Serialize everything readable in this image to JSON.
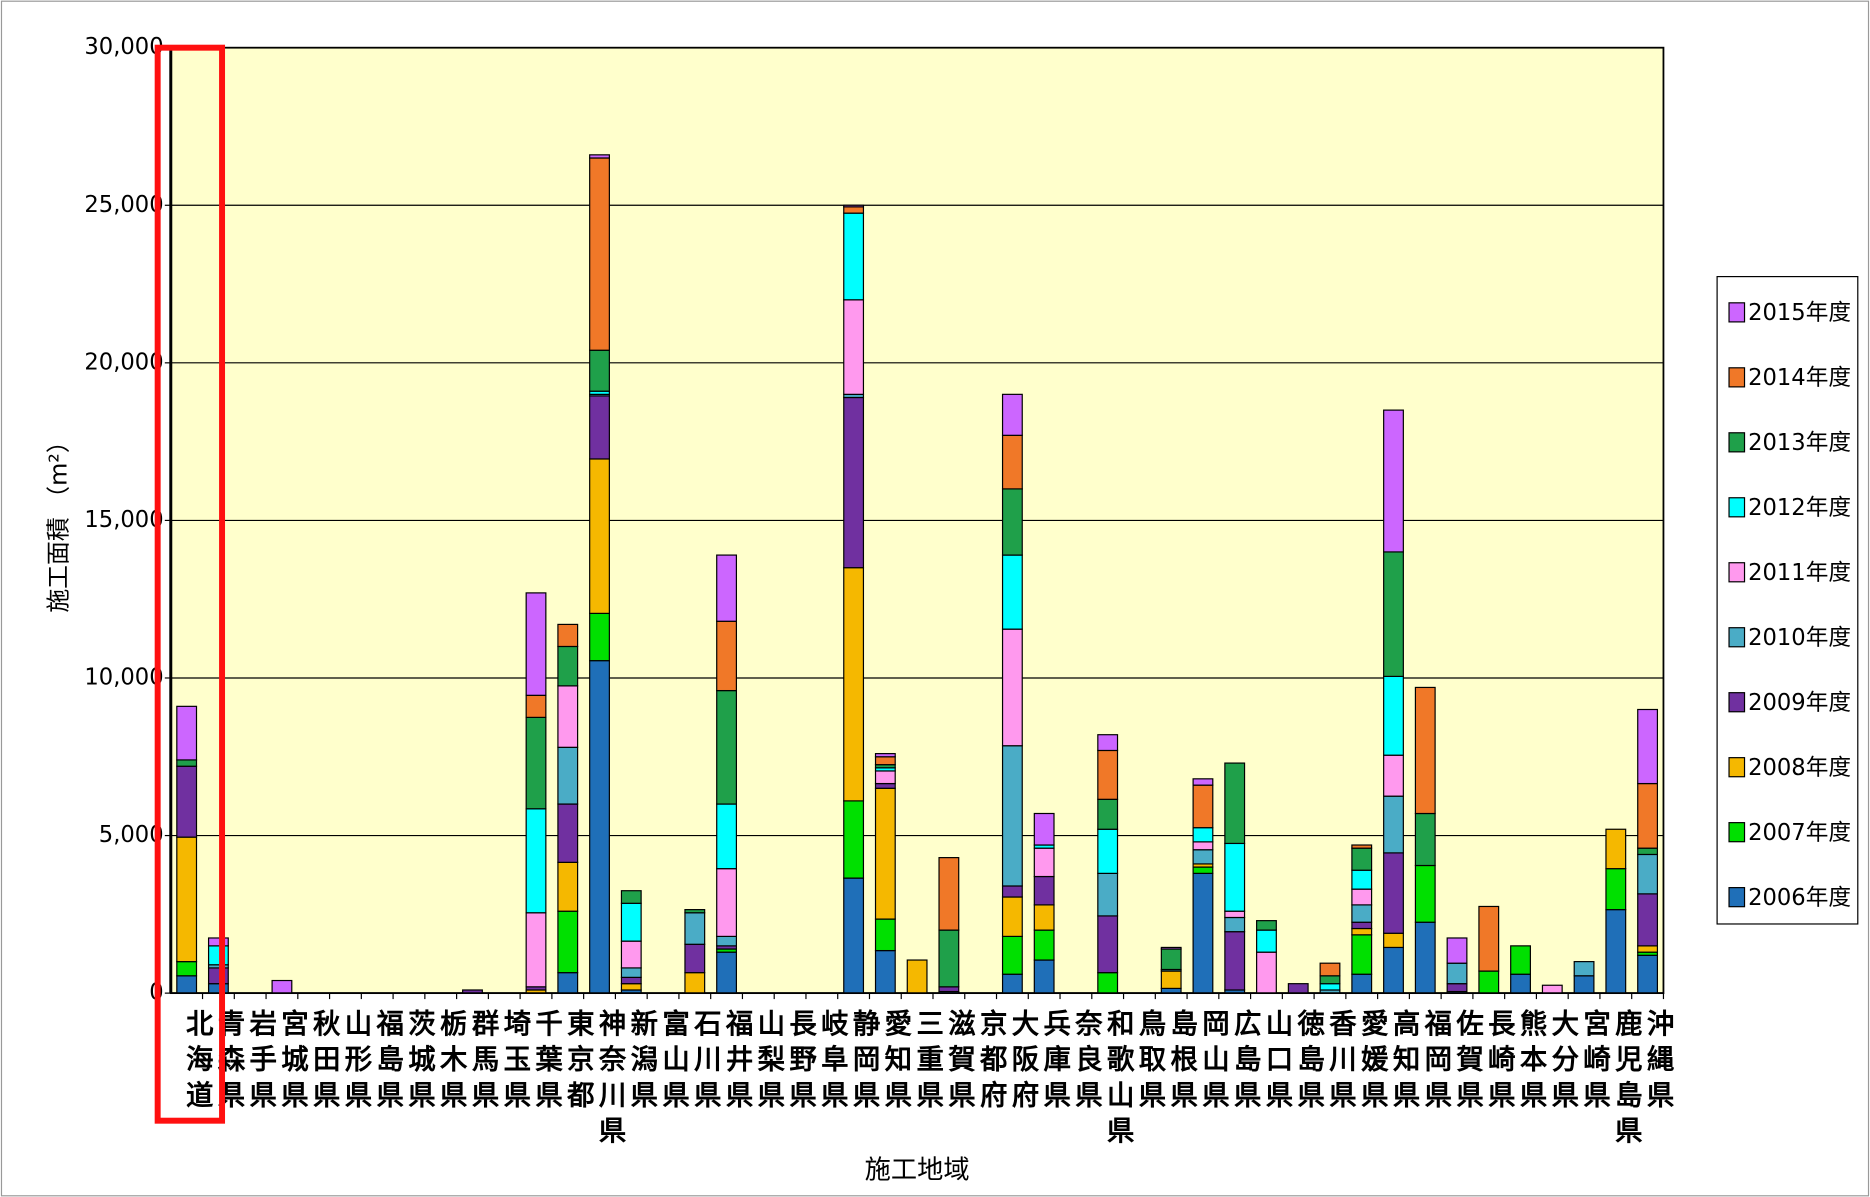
{
  "chart_data": {
    "type": "stacked_bar",
    "y_label": "施工面積 （m²）",
    "x_label": "施工地域",
    "categories": [
      "北海道",
      "青森県",
      "岩手県",
      "宮城県",
      "秋田県",
      "山形県",
      "福島県",
      "茨城県",
      "栃木県",
      "群馬県",
      "埼玉県",
      "千葉県",
      "東京都",
      "神奈川県",
      "新潟県",
      "富山県",
      "石川県",
      "福井県",
      "山梨県",
      "長野県",
      "岐阜県",
      "静岡県",
      "愛知県",
      "三重県",
      "滋賀県",
      "京都府",
      "大阪府",
      "兵庫県",
      "奈良県",
      "和歌山県",
      "鳥取県",
      "島根県",
      "岡山県",
      "広島県",
      "山口県",
      "徳島県",
      "香川県",
      "愛媛県",
      "高知県",
      "福岡県",
      "佐賀県",
      "長崎県",
      "熊本県",
      "大分県",
      "宮崎県",
      "鹿児島県",
      "沖縄県"
    ],
    "ylim": [
      0,
      30000
    ],
    "yticks": [
      {
        "value": 0,
        "label": "0"
      },
      {
        "value": 5000,
        "label": "5,000"
      },
      {
        "value": 10000,
        "label": "10,000"
      },
      {
        "value": 15000,
        "label": "15,000"
      },
      {
        "value": 20000,
        "label": "20,000"
      },
      {
        "value": 25000,
        "label": "25,000"
      },
      {
        "value": 30000,
        "label": "30,000"
      }
    ],
    "grid": true,
    "legend": "right",
    "series": [
      {
        "name": "2006年度",
        "color": "#1f6fb8",
        "values": [
          550,
          300,
          0,
          0,
          0,
          0,
          0,
          0,
          0,
          0,
          0,
          0,
          650,
          10550,
          100,
          0,
          0,
          1300,
          0,
          0,
          0,
          3650,
          1350,
          0,
          50,
          0,
          600,
          1050,
          0,
          0,
          0,
          150,
          3800,
          100,
          0,
          0,
          0,
          600,
          1450,
          2250,
          50,
          0,
          600,
          0,
          550,
          2650,
          1200
        ]
      },
      {
        "name": "2007年度",
        "color": "#00e000",
        "values": [
          450,
          0,
          0,
          0,
          0,
          0,
          0,
          0,
          0,
          0,
          0,
          0,
          1950,
          1500,
          0,
          0,
          0,
          100,
          0,
          0,
          0,
          2450,
          1000,
          0,
          0,
          0,
          1200,
          950,
          0,
          650,
          0,
          0,
          200,
          0,
          0,
          0,
          0,
          1250,
          0,
          1800,
          0,
          700,
          900,
          0,
          0,
          1300,
          100
        ]
      },
      {
        "name": "2008年度",
        "color": "#f5b800",
        "values": [
          3950,
          0,
          0,
          0,
          0,
          0,
          0,
          0,
          0,
          0,
          0,
          100,
          1550,
          4900,
          200,
          0,
          650,
          0,
          0,
          0,
          0,
          7400,
          4150,
          1050,
          0,
          0,
          1250,
          800,
          0,
          0,
          0,
          550,
          100,
          0,
          0,
          0,
          0,
          200,
          450,
          0,
          0,
          0,
          0,
          0,
          0,
          1250,
          200
        ]
      },
      {
        "name": "2009年度",
        "color": "#7030a0",
        "values": [
          2250,
          500,
          0,
          0,
          0,
          0,
          0,
          0,
          0,
          100,
          0,
          100,
          1850,
          2000,
          200,
          0,
          900,
          100,
          0,
          0,
          0,
          5400,
          150,
          0,
          150,
          0,
          350,
          900,
          0,
          1800,
          0,
          0,
          0,
          1850,
          0,
          300,
          0,
          200,
          2550,
          0,
          250,
          0,
          0,
          0,
          0,
          0,
          1650
        ]
      },
      {
        "name": "2010年度",
        "color": "#4aacc6",
        "values": [
          0,
          100,
          0,
          0,
          0,
          0,
          0,
          0,
          0,
          0,
          0,
          0,
          1800,
          50,
          300,
          0,
          1000,
          300,
          0,
          0,
          0,
          100,
          0,
          0,
          0,
          0,
          4450,
          0,
          0,
          1350,
          0,
          50,
          450,
          450,
          0,
          0,
          100,
          550,
          1800,
          0,
          650,
          0,
          0,
          0,
          450,
          0,
          1250
        ]
      },
      {
        "name": "2011年度",
        "color": "#ff99ee",
        "values": [
          0,
          0,
          0,
          0,
          0,
          0,
          0,
          0,
          0,
          0,
          0,
          2350,
          1950,
          0,
          850,
          0,
          0,
          2150,
          0,
          0,
          0,
          3000,
          400,
          0,
          0,
          0,
          3700,
          900,
          0,
          0,
          0,
          0,
          250,
          200,
          1300,
          0,
          0,
          500,
          1300,
          0,
          0,
          0,
          0,
          250,
          0,
          0,
          0
        ]
      },
      {
        "name": "2012年度",
        "color": "#00ffff",
        "values": [
          0,
          600,
          0,
          0,
          0,
          0,
          0,
          0,
          0,
          0,
          0,
          3300,
          0,
          100,
          1200,
          0,
          0,
          2050,
          0,
          0,
          0,
          2750,
          100,
          0,
          0,
          0,
          2350,
          100,
          0,
          1400,
          0,
          0,
          450,
          2150,
          700,
          0,
          200,
          600,
          2500,
          0,
          0,
          0,
          0,
          0,
          0,
          0,
          0
        ]
      },
      {
        "name": "2013年度",
        "color": "#1fa04a",
        "values": [
          200,
          0,
          0,
          0,
          0,
          0,
          0,
          0,
          0,
          0,
          0,
          2900,
          1250,
          1300,
          400,
          0,
          100,
          3600,
          0,
          0,
          0,
          0,
          100,
          0,
          1800,
          0,
          2100,
          0,
          0,
          950,
          0,
          650,
          0,
          2550,
          300,
          0,
          250,
          700,
          3950,
          1650,
          0,
          0,
          0,
          0,
          0,
          0,
          200
        ]
      },
      {
        "name": "2014年度",
        "color": "#f07828",
        "values": [
          0,
          0,
          0,
          0,
          0,
          0,
          0,
          0,
          0,
          0,
          0,
          700,
          700,
          6100,
          0,
          0,
          0,
          2200,
          0,
          0,
          0,
          200,
          250,
          0,
          2300,
          0,
          1700,
          0,
          0,
          1550,
          0,
          0,
          1350,
          0,
          0,
          0,
          400,
          100,
          0,
          4000,
          0,
          2050,
          0,
          0,
          0,
          0,
          2050
        ]
      },
      {
        "name": "2015年度",
        "color": "#cc66ff",
        "values": [
          1700,
          250,
          0,
          400,
          0,
          0,
          0,
          0,
          0,
          0,
          0,
          3250,
          0,
          100,
          0,
          0,
          0,
          2100,
          0,
          0,
          0,
          50,
          100,
          0,
          0,
          0,
          1300,
          1000,
          0,
          500,
          0,
          50,
          200,
          0,
          0,
          0,
          0,
          0,
          4500,
          0,
          800,
          0,
          0,
          0,
          0,
          0,
          2350
        ]
      }
    ]
  }
}
